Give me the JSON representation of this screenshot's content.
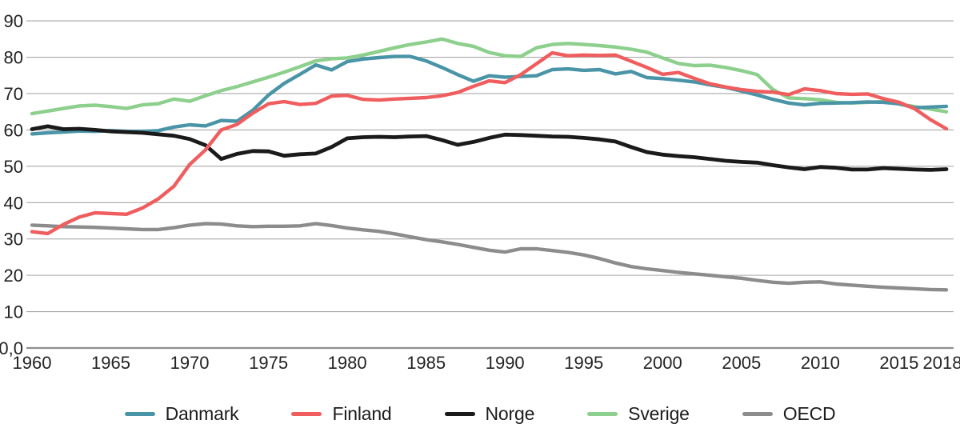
{
  "figure": {
    "background": "#FFFFFF",
    "kind": "line chart, union membership rate 1960-2018, Nordic countries vs OECD"
  },
  "colors": {
    "gridline": "#A8A8A8",
    "zero_axis_line": "#8F8F8F",
    "label_text": "#232323"
  },
  "legend": {
    "position": "bottom-center",
    "labels": [
      "Danmark",
      "Finland",
      "Norge",
      "Sverige",
      "OECD"
    ]
  },
  "chart_data": {
    "type": "line",
    "title": "",
    "xlabel": "",
    "ylabel": "",
    "xlim": [
      1960,
      2018
    ],
    "ylim": [
      0,
      90
    ],
    "grid": "horizontal",
    "legend_position": "bottom",
    "x": [
      1960,
      1961,
      1962,
      1963,
      1964,
      1965,
      1966,
      1967,
      1968,
      1969,
      1970,
      1971,
      1972,
      1973,
      1974,
      1975,
      1976,
      1977,
      1978,
      1979,
      1980,
      1981,
      1982,
      1983,
      1984,
      1985,
      1986,
      1987,
      1988,
      1989,
      1990,
      1991,
      1992,
      1993,
      1994,
      1995,
      1996,
      1997,
      1998,
      1999,
      2000,
      2001,
      2002,
      2003,
      2004,
      2005,
      2006,
      2007,
      2008,
      2009,
      2010,
      2011,
      2012,
      2013,
      2014,
      2015,
      2016,
      2017,
      2018
    ],
    "x_ticks": [
      1960,
      1965,
      1970,
      1975,
      1980,
      1985,
      1990,
      1995,
      2000,
      2005,
      2010,
      2015,
      2018
    ],
    "x_tick_labels": [
      "1960",
      "1965",
      "1970",
      "1975",
      "1980",
      "1985",
      "1990",
      "1995",
      "2000",
      "2005",
      "2010",
      "2015",
      "2018"
    ],
    "y_ticks": [
      {
        "value": 0,
        "label": "0,0"
      },
      {
        "value": 10,
        "label": "10"
      },
      {
        "value": 20,
        "label": "20"
      },
      {
        "value": 30,
        "label": "30"
      },
      {
        "value": 40,
        "label": "40"
      },
      {
        "value": 50,
        "label": "50"
      },
      {
        "value": 60,
        "label": "60"
      },
      {
        "value": 70,
        "label": "70"
      },
      {
        "value": 80,
        "label": "80"
      },
      {
        "value": 90,
        "label": "90"
      }
    ],
    "series": [
      {
        "name": "Danmark",
        "color": "#4A94A8",
        "values": [
          58.9,
          59.2,
          59.4,
          59.7,
          59.6,
          59.8,
          59.6,
          59.6,
          59.8,
          60.8,
          61.4,
          61.1,
          62.6,
          62.4,
          65.4,
          69.6,
          72.8,
          75.3,
          77.9,
          76.5,
          78.8,
          79.5,
          79.9,
          80.2,
          80.2,
          79.0,
          77.2,
          75.2,
          73.4,
          74.9,
          74.5,
          74.7,
          74.9,
          76.6,
          76.8,
          76.4,
          76.6,
          75.4,
          76.1,
          74.4,
          74.1,
          73.7,
          73.2,
          72.4,
          71.7,
          70.7,
          69.6,
          68.4,
          67.4,
          66.9,
          67.3,
          67.4,
          67.5,
          67.7,
          67.6,
          67.2,
          66.1,
          66.3,
          66.5
        ]
      },
      {
        "name": "Finland",
        "color": "#F05D5E",
        "values": [
          32.0,
          31.5,
          34.0,
          36.0,
          37.2,
          37.0,
          36.8,
          38.5,
          41.0,
          44.5,
          50.5,
          54.5,
          60.0,
          61.5,
          64.6,
          67.2,
          67.8,
          67.0,
          67.3,
          69.3,
          69.5,
          68.4,
          68.2,
          68.5,
          68.7,
          68.9,
          69.4,
          70.3,
          72.0,
          73.5,
          73.0,
          75.2,
          78.2,
          81.2,
          80.4,
          80.6,
          80.5,
          80.6,
          78.9,
          77.2,
          75.3,
          75.8,
          74.2,
          72.7,
          71.8,
          71.1,
          70.6,
          70.4,
          69.7,
          71.3,
          70.8,
          70.0,
          69.8,
          69.9,
          68.6,
          67.6,
          65.8,
          62.8,
          60.3
        ]
      },
      {
        "name": "Norge",
        "color": "#1A1A1A",
        "values": [
          60.2,
          61.0,
          60.2,
          60.3,
          60.0,
          59.6,
          59.4,
          59.2,
          58.8,
          58.4,
          57.5,
          55.8,
          52.0,
          53.4,
          54.2,
          54.1,
          52.9,
          53.3,
          53.5,
          55.3,
          57.7,
          58.0,
          58.1,
          58.0,
          58.2,
          58.3,
          57.2,
          55.9,
          56.7,
          57.8,
          58.7,
          58.6,
          58.4,
          58.2,
          58.1,
          57.8,
          57.4,
          56.8,
          55.3,
          53.9,
          53.2,
          52.8,
          52.5,
          52.0,
          51.5,
          51.2,
          51.0,
          50.3,
          49.7,
          49.2,
          49.8,
          49.6,
          49.1,
          49.1,
          49.5,
          49.3,
          49.1,
          49.0,
          49.2
        ]
      },
      {
        "name": "Sverige",
        "color": "#8DCF8C",
        "values": [
          64.5,
          65.2,
          65.9,
          66.6,
          66.8,
          66.4,
          65.9,
          66.9,
          67.2,
          68.5,
          67.9,
          69.4,
          70.8,
          71.9,
          73.2,
          74.5,
          75.9,
          77.4,
          79.0,
          79.6,
          79.8,
          80.6,
          81.6,
          82.6,
          83.5,
          84.2,
          85.0,
          83.8,
          83.0,
          81.3,
          80.4,
          80.2,
          82.6,
          83.5,
          83.8,
          83.5,
          83.2,
          82.8,
          82.2,
          81.4,
          79.8,
          78.3,
          77.7,
          77.8,
          77.2,
          76.3,
          75.2,
          71.1,
          68.8,
          68.6,
          68.3,
          67.6,
          67.4,
          67.6,
          67.8,
          67.1,
          66.4,
          65.7,
          65.0
        ]
      },
      {
        "name": "OECD",
        "color": "#8C8C8C",
        "values": [
          33.8,
          33.6,
          33.4,
          33.3,
          33.2,
          33.0,
          32.8,
          32.6,
          32.6,
          33.1,
          33.8,
          34.2,
          34.1,
          33.6,
          33.4,
          33.5,
          33.5,
          33.6,
          34.2,
          33.7,
          33.0,
          32.5,
          32.1,
          31.4,
          30.6,
          29.8,
          29.2,
          28.5,
          27.7,
          26.9,
          26.4,
          27.3,
          27.3,
          26.8,
          26.3,
          25.6,
          24.6,
          23.4,
          22.4,
          21.8,
          21.3,
          20.8,
          20.4,
          20.0,
          19.6,
          19.2,
          18.6,
          18.1,
          17.8,
          18.1,
          18.2,
          17.6,
          17.3,
          17.0,
          16.7,
          16.5,
          16.3,
          16.1,
          16.0
        ]
      }
    ]
  }
}
